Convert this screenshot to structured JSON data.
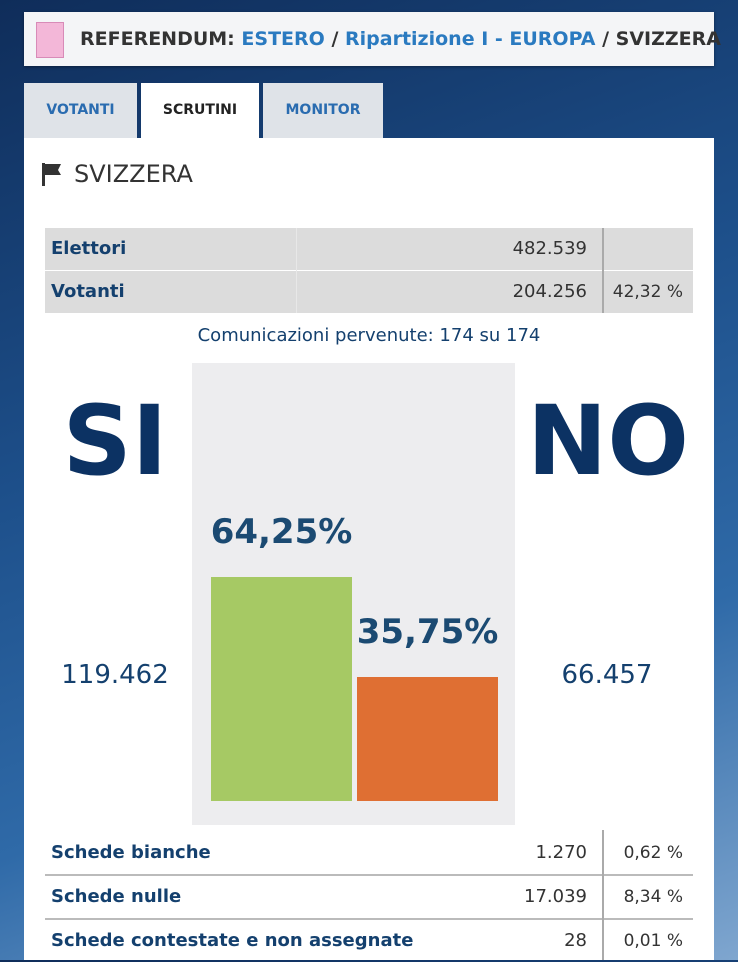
{
  "header": {
    "prefix": "REFERENDUM:",
    "links": [
      "ESTERO",
      "Ripartizione I - EUROPA"
    ],
    "current": "SVIZZERA",
    "separator": "/"
  },
  "tabs": [
    "VOTANTI",
    "SCRUTINI",
    "MONITOR"
  ],
  "section_title": "SVIZZERA",
  "turnout": {
    "rows": [
      {
        "label": "Elettori",
        "value": "482.539"
      },
      {
        "label": "Votanti",
        "value": "204.256",
        "percent": "42,32 %"
      }
    ]
  },
  "communications": "Comunicazioni pervenute: 174 su 174",
  "chart_data": {
    "type": "bar",
    "categories": [
      "SI",
      "NO"
    ],
    "values": [
      64.25,
      35.75
    ],
    "value_labels": [
      "64,25%",
      "35,75%"
    ],
    "votes": [
      "119.462",
      "66.457"
    ],
    "colors": [
      "#a6c964",
      "#df6f33"
    ]
  },
  "ballots": {
    "rows": [
      {
        "label": "Schede bianche",
        "value": "1.270",
        "percent": "0,62 %"
      },
      {
        "label": "Schede nulle",
        "value": "17.039",
        "percent": "8,34 %"
      },
      {
        "label": "Schede contestate e non assegnate",
        "value": "28",
        "percent": "0,01 %"
      }
    ]
  }
}
